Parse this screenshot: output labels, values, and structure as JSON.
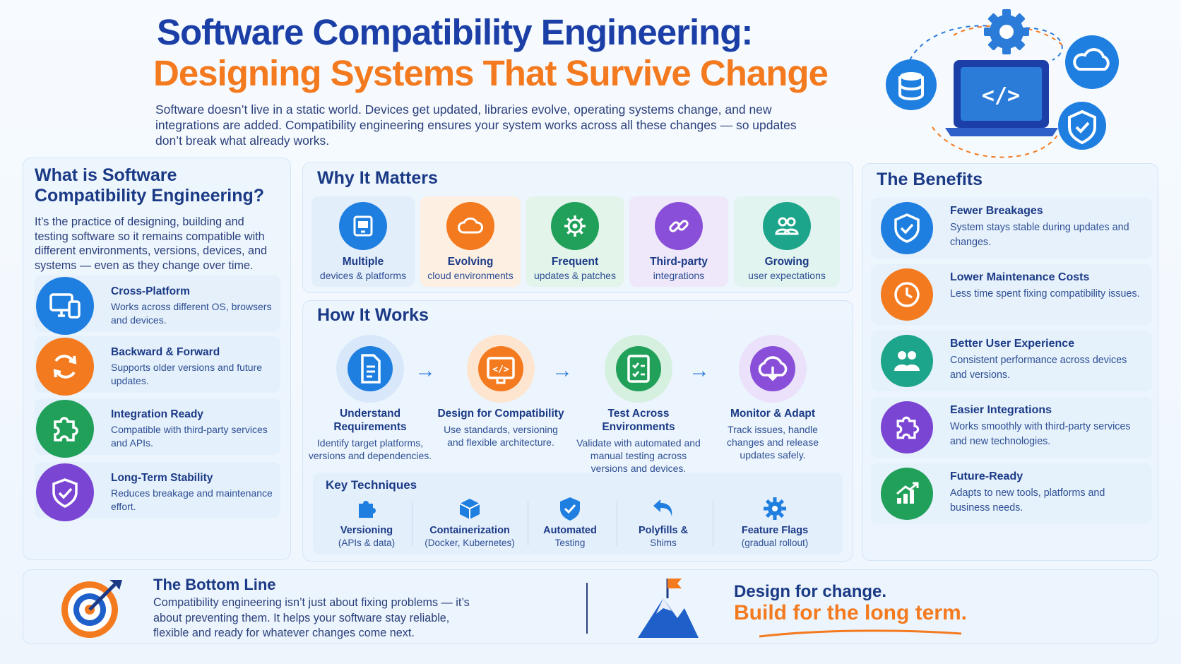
{
  "header": {
    "title_line1": "Software Compatibility Engineering:",
    "title_line2": "Designing Systems That Survive Change",
    "intro": "Software doesn’t live in a static world. Devices get updated, libraries evolve, operating systems change, and new integrations are added. Compatibility engineering ensures your system works across all these changes — so updates don’t break what already works."
  },
  "what": {
    "title": "What is Software Compatibility Engineering?",
    "description": "It’s the practice of designing, building and testing software so it remains compatible with different environments, versions, devices, and systems — even as they change over time.",
    "features": [
      {
        "title": "Cross-Platform",
        "desc": "Works across different OS, browsers and devices.",
        "icon": "monitor-devices-icon",
        "color": "#1f7fe0"
      },
      {
        "title": "Backward & Forward",
        "desc": "Supports older versions and future updates.",
        "icon": "refresh-icon",
        "color": "#f47a1f"
      },
      {
        "title": "Integration Ready",
        "desc": "Compatible with third-party services and APIs.",
        "icon": "puzzle-icon",
        "color": "#21a05a"
      },
      {
        "title": "Long-Term Stability",
        "desc": "Reduces breakage and maintenance effort.",
        "icon": "shield-check-icon",
        "color": "#7b45d3"
      }
    ]
  },
  "why": {
    "title": "Why It Matters",
    "cards": [
      {
        "line1": "Multiple",
        "line2": "devices & platforms",
        "icon": "devices-icon",
        "color": "#1f7fe0",
        "bg": "#e3eefb"
      },
      {
        "line1": "Evolving",
        "line2": "cloud environments",
        "icon": "cloud-icon",
        "color": "#f47a1f",
        "bg": "#fdefe2"
      },
      {
        "line1": "Frequent",
        "line2": "updates & patches",
        "icon": "gear-icon",
        "color": "#21a05a",
        "bg": "#e3f4ea"
      },
      {
        "line1": "Third-party",
        "line2": "integrations",
        "icon": "link-icon",
        "color": "#8a4fd8",
        "bg": "#efe8fb"
      },
      {
        "line1": "Growing",
        "line2": "user expectations",
        "icon": "users-icon",
        "color": "#1ca58a",
        "bg": "#e2f4ef"
      }
    ]
  },
  "how": {
    "title": "How It Works",
    "steps": [
      {
        "title": "Understand Requirements",
        "desc": "Identify target platforms, versions and dependencies.",
        "icon": "document-icon",
        "color": "#1f7fe0"
      },
      {
        "title": "Design for Compatibility",
        "desc": "Use standards, versioning and flexible architecture.",
        "icon": "code-window-icon",
        "color": "#f47a1f"
      },
      {
        "title": "Test Across Environments",
        "desc": "Validate with automated and manual testing across versions and devices.",
        "icon": "checklist-icon",
        "color": "#21a05a"
      },
      {
        "title": "Monitor & Adapt",
        "desc": "Track issues, handle changes and release updates safely.",
        "icon": "cloud-download-icon",
        "color": "#8a4fd8"
      }
    ],
    "techniques_title": "Key Techniques",
    "techniques": [
      {
        "name": "Versioning",
        "sub": "(APIs & data)",
        "icon": "puzzle-icon",
        "color": "#1f7fe0"
      },
      {
        "name": "Containerization",
        "sub": "(Docker, Kubernetes)",
        "icon": "cube-icon",
        "color": "#1f7fe0"
      },
      {
        "name": "Automated",
        "sub": "Testing",
        "icon": "shield-check-icon",
        "color": "#1f7fe0"
      },
      {
        "name": "Polyfills &",
        "sub": "Shims",
        "icon": "undo-arrow-icon",
        "color": "#1f7fe0"
      },
      {
        "name": "Feature Flags",
        "sub": "(gradual rollout)",
        "icon": "gear-icon",
        "color": "#1f7fe0"
      }
    ]
  },
  "benefits": {
    "title": "The Benefits",
    "items": [
      {
        "title": "Fewer Breakages",
        "desc": "System stays stable during updates and changes.",
        "icon": "shield-check-icon",
        "color": "#1f7fe0"
      },
      {
        "title": "Lower Maintenance Costs",
        "desc": "Less time spent fixing compatibility issues.",
        "icon": "clock-icon",
        "color": "#f47a1f"
      },
      {
        "title": "Better User Experience",
        "desc": "Consistent performance across devices and versions.",
        "icon": "users-icon",
        "color": "#1ca58a"
      },
      {
        "title": "Easier Integrations",
        "desc": "Works smoothly with third-party services and new technologies.",
        "icon": "puzzle-icon",
        "color": "#7b45d3"
      },
      {
        "title": "Future-Ready",
        "desc": "Adapts to new tools, platforms and business needs.",
        "icon": "growth-chart-icon",
        "color": "#21a05a"
      }
    ]
  },
  "bottom": {
    "title": "The Bottom Line",
    "desc": "Compatibility engineering isn’t just about fixing problems — it’s about preventing them. It helps your software stay reliable, flexible and ready for whatever changes come next.",
    "slogan_line1": "Design for change.",
    "slogan_line2": "Build for the long term."
  }
}
